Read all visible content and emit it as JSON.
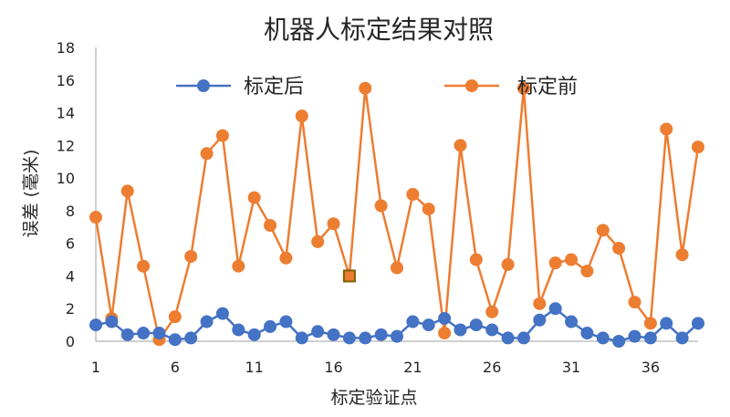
{
  "chart_data": {
    "type": "line",
    "title": "机器人标定结果对照",
    "xlabel": "标定验证点",
    "ylabel": "误差 (毫米)",
    "x": [
      1,
      2,
      3,
      4,
      5,
      6,
      7,
      8,
      9,
      10,
      11,
      12,
      13,
      14,
      15,
      16,
      17,
      18,
      19,
      20,
      21,
      22,
      23,
      24,
      25,
      26,
      27,
      28,
      29,
      30,
      31,
      32,
      33,
      34,
      35,
      36,
      37,
      38,
      39
    ],
    "x_ticks": [
      "1",
      "6",
      "11",
      "16",
      "21",
      "26",
      "31",
      "36"
    ],
    "y_ticks": [
      "0",
      "2",
      "4",
      "6",
      "8",
      "10",
      "12",
      "14",
      "16",
      "18"
    ],
    "ylim": [
      0,
      18
    ],
    "legend_position": "top",
    "series": [
      {
        "name": "标定后",
        "color": "#4472C4",
        "values": [
          1.0,
          1.2,
          0.4,
          0.5,
          0.5,
          0.1,
          0.2,
          1.2,
          1.7,
          0.7,
          0.4,
          0.9,
          1.2,
          0.2,
          0.6,
          0.4,
          0.2,
          0.2,
          0.4,
          0.3,
          1.2,
          1.0,
          1.4,
          0.7,
          1.0,
          0.7,
          0.2,
          0.2,
          1.3,
          2.0,
          1.2,
          0.5,
          0.2,
          0.0,
          0.3,
          0.2,
          1.1,
          0.2,
          1.1
        ]
      },
      {
        "name": "标定前",
        "color": "#ED7D31",
        "values": [
          7.6,
          1.4,
          9.2,
          4.6,
          0.1,
          1.5,
          5.2,
          11.5,
          12.6,
          4.6,
          8.8,
          7.1,
          5.1,
          13.8,
          6.1,
          7.2,
          4.0,
          15.5,
          8.3,
          4.5,
          9.0,
          8.1,
          0.5,
          12.0,
          5.0,
          1.8,
          4.7,
          15.5,
          2.3,
          4.8,
          5.0,
          4.3,
          6.8,
          5.7,
          2.4,
          1.1,
          13.0,
          5.3,
          11.9
        ]
      }
    ],
    "highlight": {
      "series": "标定前",
      "x": 17,
      "y": 4.0,
      "color": "#7F6000"
    }
  }
}
